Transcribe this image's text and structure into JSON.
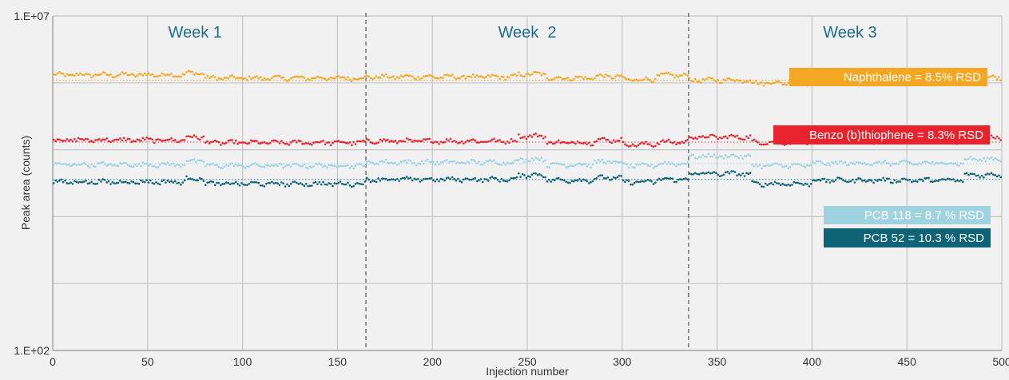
{
  "chart_data": {
    "type": "scatter",
    "title": "",
    "xlabel": "Injection number",
    "ylabel": "Peak area (counts)",
    "xlim": [
      0,
      500
    ],
    "y_scale": "log",
    "ylim": [
      100,
      10000000
    ],
    "x_ticks": [
      "0",
      "50",
      "100",
      "150",
      "200",
      "250",
      "300",
      "350",
      "400",
      "450",
      "500"
    ],
    "y_tick_labels": [
      "1.E+02",
      "1.E+07"
    ],
    "y_gridline_decades": [
      100,
      1000,
      10000,
      100000,
      1000000,
      10000000
    ],
    "grid": true,
    "week_separators": [
      165,
      335
    ],
    "weeks": [
      {
        "label": "Week 1",
        "center_x": 75
      },
      {
        "label": "Week  2",
        "center_x": 250
      },
      {
        "label": "Week 3",
        "center_x": 420
      }
    ],
    "series": [
      {
        "name": "Naphthalene",
        "label": "Naphthalene = 8.5% RSD",
        "color": "#f5a623",
        "mean": 1100000,
        "start": 1320000,
        "segments": [
          [
            0,
            70,
            1320000
          ],
          [
            70,
            80,
            1400000
          ],
          [
            80,
            165,
            1180000
          ],
          [
            165,
            245,
            1230000
          ],
          [
            245,
            260,
            1350000
          ],
          [
            260,
            285,
            1180000
          ],
          [
            285,
            300,
            1250000
          ],
          [
            300,
            318,
            1120000
          ],
          [
            318,
            335,
            1300000
          ],
          [
            335,
            368,
            1100000
          ],
          [
            368,
            400,
            1000000
          ],
          [
            400,
            480,
            1090000
          ],
          [
            480,
            500,
            1200000
          ]
        ]
      },
      {
        "name": "Benzo (b)thiophene",
        "label": "Benzo (b)thiophene = 8.3% RSD",
        "color": "#e8232d",
        "mean": 130000,
        "segments": [
          [
            0,
            70,
            140000
          ],
          [
            70,
            80,
            155000
          ],
          [
            80,
            165,
            128000
          ],
          [
            165,
            245,
            135000
          ],
          [
            245,
            260,
            160000
          ],
          [
            260,
            285,
            128000
          ],
          [
            285,
            300,
            140000
          ],
          [
            300,
            318,
            120000
          ],
          [
            318,
            335,
            130000
          ],
          [
            335,
            368,
            155000
          ],
          [
            368,
            400,
            130000
          ],
          [
            400,
            480,
            135000
          ],
          [
            480,
            500,
            150000
          ]
        ]
      },
      {
        "name": "PCB 118",
        "label": "PCB 118 = 8.7 % RSD",
        "color": "#9fd3e0",
        "mean": 62000,
        "segments": [
          [
            0,
            70,
            60000
          ],
          [
            70,
            80,
            68000
          ],
          [
            80,
            165,
            58000
          ],
          [
            165,
            245,
            65000
          ],
          [
            245,
            260,
            72000
          ],
          [
            260,
            285,
            60000
          ],
          [
            285,
            300,
            66000
          ],
          [
            300,
            318,
            58000
          ],
          [
            318,
            335,
            62000
          ],
          [
            335,
            368,
            80000
          ],
          [
            368,
            400,
            58000
          ],
          [
            400,
            480,
            63000
          ],
          [
            480,
            500,
            72000
          ]
        ]
      },
      {
        "name": "PCB 52",
        "label": "PCB 52 = 10.3 % RSD",
        "color": "#0e6377",
        "mean": 36000,
        "segments": [
          [
            0,
            70,
            33000
          ],
          [
            70,
            80,
            37000
          ],
          [
            80,
            165,
            31000
          ],
          [
            165,
            245,
            36000
          ],
          [
            245,
            260,
            42000
          ],
          [
            260,
            285,
            35000
          ],
          [
            285,
            300,
            38000
          ],
          [
            300,
            318,
            33000
          ],
          [
            318,
            335,
            36000
          ],
          [
            335,
            368,
            44000
          ],
          [
            368,
            400,
            31000
          ],
          [
            400,
            480,
            35000
          ],
          [
            480,
            500,
            42000
          ]
        ]
      }
    ]
  }
}
